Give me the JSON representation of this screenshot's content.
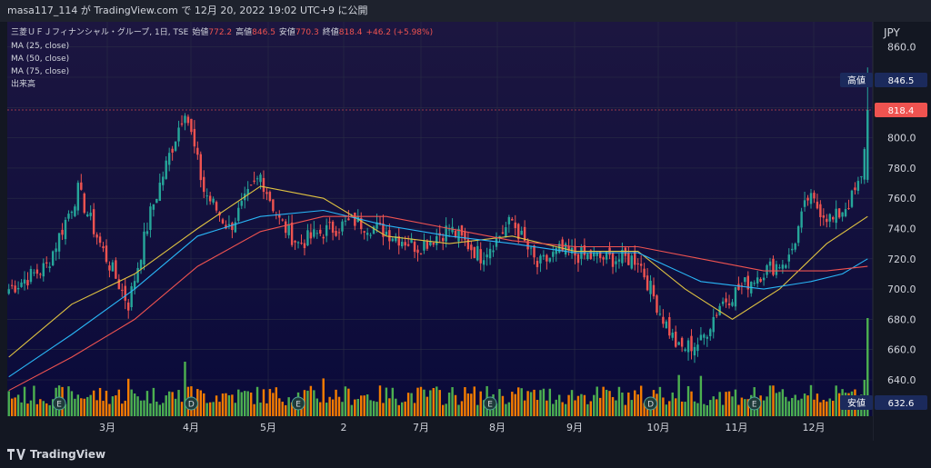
{
  "header": {
    "publisher": "masa117_114 が TradingView.com で 12月 20, 2022 19:02 UTC+9 に公開"
  },
  "legend": {
    "symbol": "三菱ＵＦＪフィナンシャル・グループ, 1日, TSE",
    "open_label": "始値",
    "open": "772.2",
    "high_label": "高値",
    "high": "846.5",
    "low_label": "安値",
    "low": "770.3",
    "close_label": "終値",
    "close": "818.4",
    "change": "+46.2 (+5.98%)",
    "indicators": [
      "MA (25, close)",
      "MA (50, close)",
      "MA (75, close)",
      "出来高"
    ]
  },
  "price_axis": {
    "currency": "JPY",
    "ticks": [
      "860.0",
      "840.0",
      "820.0",
      "800.0",
      "780.0",
      "760.0",
      "740.0",
      "720.0",
      "700.0",
      "680.0",
      "660.0",
      "640.0"
    ],
    "last_price": "818.4",
    "high_tag": "高値",
    "high_value": "846.5",
    "low_tag": "安値",
    "low_value": "632.6"
  },
  "time_axis": {
    "ticks": [
      "3月",
      "4月",
      "5月",
      "2",
      "7月",
      "8月",
      "9月",
      "10月",
      "11月",
      "12月"
    ]
  },
  "event_markers": [
    "E",
    "D",
    "E",
    "E",
    "D",
    "E"
  ],
  "footer": {
    "brand": "TradingView"
  },
  "colors": {
    "up": "#26a69a",
    "down": "#ef5350",
    "vol_up": "#4caf50",
    "vol_down": "#f57c00",
    "ma25": "#e0c341",
    "ma50": "#29b6f6",
    "ma75": "#ef5350",
    "plot_bg_top": "#1a1440",
    "plot_bg_bottom": "#0b0b3a"
  },
  "chart_data": {
    "type": "candlestick",
    "ylim": [
      630,
      870
    ],
    "anchors": [
      [
        0,
        700
      ],
      [
        12,
        715
      ],
      [
        22,
        765
      ],
      [
        30,
        725
      ],
      [
        38,
        690
      ],
      [
        45,
        750
      ],
      [
        56,
        820
      ],
      [
        62,
        765
      ],
      [
        70,
        740
      ],
      [
        80,
        775
      ],
      [
        86,
        745
      ],
      [
        92,
        730
      ],
      [
        100,
        738
      ],
      [
        110,
        745
      ],
      [
        120,
        738
      ],
      [
        130,
        728
      ],
      [
        140,
        740
      ],
      [
        150,
        722
      ],
      [
        160,
        745
      ],
      [
        168,
        715
      ],
      [
        175,
        725
      ],
      [
        182,
        722
      ],
      [
        190,
        720
      ],
      [
        200,
        720
      ],
      [
        207,
        685
      ],
      [
        213,
        660
      ],
      [
        220,
        665
      ],
      [
        226,
        690
      ],
      [
        232,
        700
      ],
      [
        240,
        712
      ],
      [
        248,
        720
      ],
      [
        254,
        760
      ],
      [
        262,
        745
      ],
      [
        268,
        760
      ],
      [
        271,
        772
      ],
      [
        273,
        818.4
      ]
    ],
    "ma25": [
      [
        0,
        655
      ],
      [
        20,
        690
      ],
      [
        40,
        710
      ],
      [
        60,
        740
      ],
      [
        80,
        768
      ],
      [
        100,
        760
      ],
      [
        120,
        735
      ],
      [
        140,
        730
      ],
      [
        160,
        735
      ],
      [
        180,
        725
      ],
      [
        200,
        725
      ],
      [
        215,
        700
      ],
      [
        230,
        680
      ],
      [
        245,
        700
      ],
      [
        260,
        730
      ],
      [
        273,
        748
      ]
    ],
    "ma50": [
      [
        0,
        642
      ],
      [
        20,
        670
      ],
      [
        40,
        700
      ],
      [
        60,
        735
      ],
      [
        80,
        748
      ],
      [
        100,
        752
      ],
      [
        120,
        742
      ],
      [
        140,
        735
      ],
      [
        160,
        730
      ],
      [
        180,
        724
      ],
      [
        200,
        724
      ],
      [
        220,
        705
      ],
      [
        240,
        700
      ],
      [
        255,
        705
      ],
      [
        265,
        710
      ],
      [
        273,
        720
      ]
    ],
    "ma75": [
      [
        0,
        633
      ],
      [
        20,
        655
      ],
      [
        40,
        680
      ],
      [
        60,
        715
      ],
      [
        80,
        738
      ],
      [
        100,
        748
      ],
      [
        120,
        748
      ],
      [
        140,
        740
      ],
      [
        160,
        732
      ],
      [
        180,
        728
      ],
      [
        200,
        728
      ],
      [
        220,
        720
      ],
      [
        240,
        712
      ],
      [
        260,
        712
      ],
      [
        273,
        715
      ]
    ],
    "earnings_index": [
      16,
      58,
      92,
      153,
      204,
      237
    ]
  }
}
